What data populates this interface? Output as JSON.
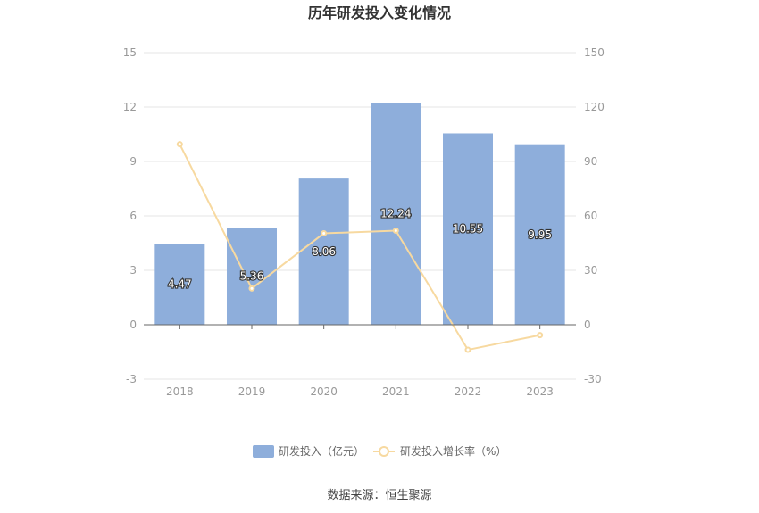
{
  "chart_data": {
    "type": "bar",
    "title": "历年研发投入变化情况",
    "categories": [
      "2018",
      "2019",
      "2020",
      "2021",
      "2022",
      "2023"
    ],
    "series": [
      {
        "name": "研发投入（亿元）",
        "type": "bar",
        "axis": "left",
        "color": "#8eaedb",
        "values": [
          4.47,
          5.36,
          8.06,
          12.24,
          10.55,
          9.95
        ],
        "labels": [
          "4.47",
          "5.36",
          "8.06",
          "12.24",
          "10.55",
          "9.95"
        ]
      },
      {
        "name": "研发投入增长率（%）",
        "type": "line",
        "axis": "right",
        "color": "#f7d9a0",
        "values": [
          99.5,
          20.0,
          50.4,
          51.9,
          -13.8,
          -5.7
        ]
      }
    ],
    "y_left": {
      "ticks": [
        15,
        12,
        9,
        6,
        3,
        0,
        -3
      ],
      "ylim": [
        -3,
        15
      ]
    },
    "y_right": {
      "ticks": [
        150,
        120,
        90,
        60,
        30,
        0,
        -30
      ],
      "ylim": [
        -30,
        150
      ]
    },
    "grid": true,
    "legend_position": "bottom"
  },
  "source": "数据来源：恒生聚源"
}
